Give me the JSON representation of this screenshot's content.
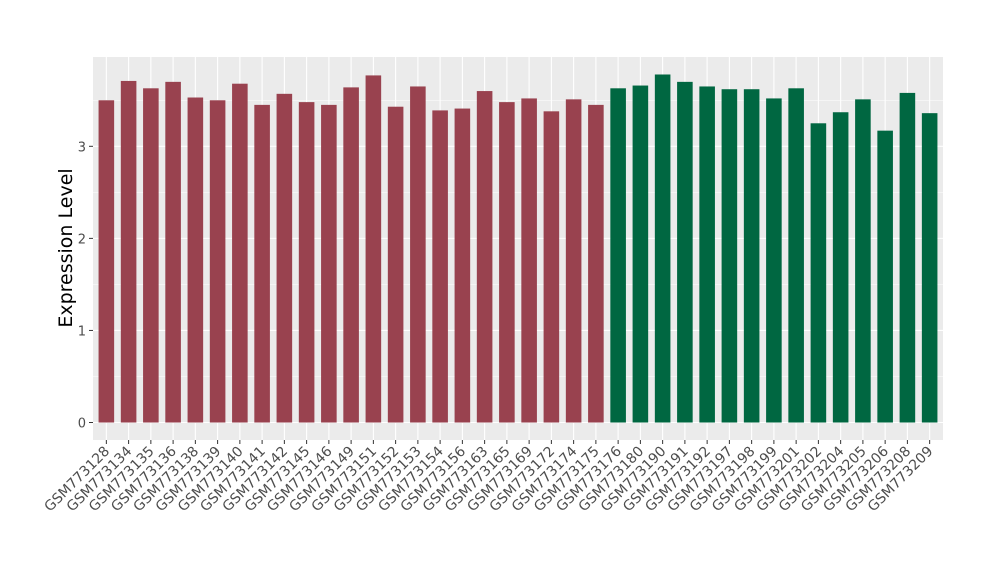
{
  "chart_data": {
    "type": "bar",
    "y_label": "Expression Level",
    "categories": [
      "GSM773128",
      "GSM773134",
      "GSM773135",
      "GSM773136",
      "GSM773138",
      "GSM773139",
      "GSM773140",
      "GSM773141",
      "GSM773142",
      "GSM773145",
      "GSM773146",
      "GSM773149",
      "GSM773151",
      "GSM773152",
      "GSM773153",
      "GSM773154",
      "GSM773156",
      "GSM773163",
      "GSM773165",
      "GSM773169",
      "GSM773172",
      "GSM773174",
      "GSM773175",
      "GSM773176",
      "GSM773180",
      "GSM773190",
      "GSM773191",
      "GSM773192",
      "GSM773197",
      "GSM773198",
      "GSM773199",
      "GSM773201",
      "GSM773202",
      "GSM773204",
      "GSM773205",
      "GSM773206",
      "GSM773208",
      "GSM773209"
    ],
    "values": [
      3.5,
      3.71,
      3.63,
      3.7,
      3.53,
      3.5,
      3.68,
      3.45,
      3.57,
      3.48,
      3.45,
      3.64,
      3.77,
      3.43,
      3.65,
      3.39,
      3.41,
      3.6,
      3.48,
      3.52,
      3.38,
      3.51,
      3.45,
      3.63,
      3.66,
      3.78,
      3.7,
      3.65,
      3.62,
      3.62,
      3.52,
      3.63,
      3.25,
      3.37,
      3.51,
      3.17,
      3.58,
      3.36
    ],
    "colors": [
      "#99424f",
      "#99424f",
      "#99424f",
      "#99424f",
      "#99424f",
      "#99424f",
      "#99424f",
      "#99424f",
      "#99424f",
      "#99424f",
      "#99424f",
      "#99424f",
      "#99424f",
      "#99424f",
      "#99424f",
      "#99424f",
      "#99424f",
      "#99424f",
      "#99424f",
      "#99424f",
      "#99424f",
      "#99424f",
      "#99424f",
      "#006741",
      "#006741",
      "#006741",
      "#006741",
      "#006741",
      "#006741",
      "#006741",
      "#006741",
      "#006741",
      "#006741",
      "#006741",
      "#006741",
      "#006741",
      "#006741",
      "#006741"
    ],
    "ylim": [
      -0.19,
      3.97
    ],
    "yticks": [
      0,
      1,
      2,
      3
    ],
    "grid": true
  }
}
